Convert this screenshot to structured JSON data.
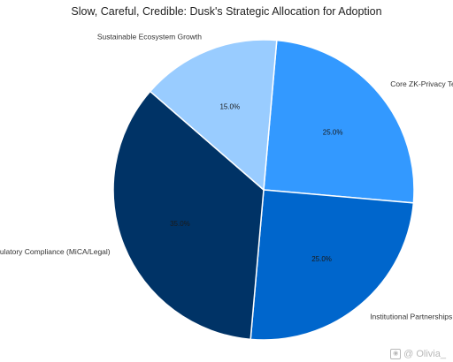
{
  "chart_data": {
    "type": "pie",
    "title": "Slow, Careful, Credible: Dusk's Strategic Allocation for Adoption",
    "start_angle_deg": 5,
    "direction": "clockwise",
    "labels": [
      "Core ZK-Privacy Tech",
      "Institutional Partnerships",
      "Regulatory Compliance (MiCA/Legal)",
      "Sustainable Ecosystem Growth"
    ],
    "values": [
      25.0,
      25.0,
      35.0,
      15.0
    ],
    "value_labels": [
      "25.0%",
      "25.0%",
      "35.0%",
      "15.0%"
    ],
    "colors": [
      "#3399ff",
      "#0066cc",
      "#003366",
      "#99ccff"
    ],
    "edge_color": "#ffffff"
  },
  "watermark": {
    "text": "@ Olivia_"
  }
}
